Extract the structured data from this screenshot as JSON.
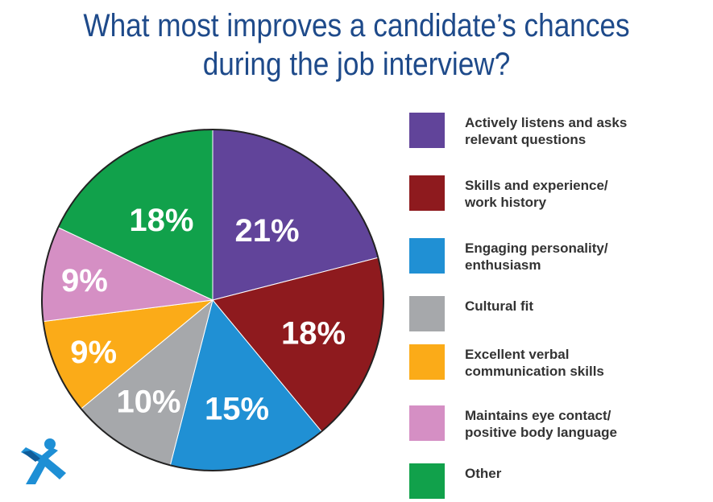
{
  "title": {
    "line1": "What most improves a candidate’s chances",
    "line2": "during the job interview?"
  },
  "chart_data": {
    "type": "pie",
    "title": "What most improves a candidate’s chances during the job interview?",
    "slices": [
      {
        "label": "Actively listens and asks relevant questions",
        "value": 21,
        "display": "21%",
        "color": "#61449a"
      },
      {
        "label": "Skills and experience/ work history",
        "value": 18,
        "display": "18%",
        "color": "#8e1a1e"
      },
      {
        "label": "Engaging personality/ enthusiasm",
        "value": 15,
        "display": "15%",
        "color": "#2090d4"
      },
      {
        "label": "Cultural fit",
        "value": 10,
        "display": "10%",
        "color": "#a6a8ab"
      },
      {
        "label": "Excellent verbal communication skills",
        "value": 9,
        "display": "9%",
        "color": "#fbab18"
      },
      {
        "label": "Maintains eye contact/ positive body language",
        "value": 9,
        "display": "9%",
        "color": "#d58fc4"
      },
      {
        "label": "Other",
        "value": 18,
        "display": "18%",
        "color": "#11a14b"
      }
    ],
    "legend_position": "right"
  },
  "legend": [
    {
      "line1": "Actively listens and asks",
      "line2": "relevant questions",
      "color": "#61449a"
    },
    {
      "line1": "Skills and experience/",
      "line2": "work history",
      "color": "#8e1a1e"
    },
    {
      "line1": "Engaging personality/",
      "line2": "enthusiasm",
      "color": "#2090d4"
    },
    {
      "line1": "Cultural fit",
      "line2": "",
      "color": "#a6a8ab"
    },
    {
      "line1": "Excellent verbal",
      "line2": "communication skills",
      "color": "#fbab18"
    },
    {
      "line1": "Maintains eye contact/",
      "line2": "positive body language",
      "color": "#d58fc4"
    },
    {
      "line1": "Other",
      "line2": "",
      "color": "#11a14b"
    }
  ],
  "logo": {
    "icon": "person-x-logo-icon",
    "color": "#1e8fd5"
  }
}
